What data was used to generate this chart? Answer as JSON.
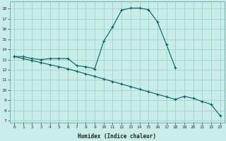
{
  "xlabel": "Humidex (Indice chaleur)",
  "bg_color": "#c8ece8",
  "line_color": "#006060",
  "grid_color": "#99cccc",
  "xlim": [
    -0.5,
    23.5
  ],
  "ylim": [
    6.8,
    18.7
  ],
  "xticks": [
    0,
    1,
    2,
    3,
    4,
    5,
    6,
    7,
    8,
    9,
    10,
    11,
    12,
    13,
    14,
    15,
    16,
    17,
    18,
    19,
    20,
    21,
    22,
    23
  ],
  "yticks": [
    7,
    8,
    9,
    10,
    11,
    12,
    13,
    14,
    15,
    16,
    17,
    18
  ],
  "curve1_x": [
    0,
    1,
    2,
    3,
    4,
    5,
    6,
    7,
    8,
    9,
    10,
    11,
    12,
    13,
    14,
    15,
    16,
    17,
    18
  ],
  "curve1_y": [
    13.3,
    13.3,
    13.1,
    13.0,
    13.1,
    13.1,
    13.1,
    12.4,
    12.3,
    12.1,
    14.8,
    16.2,
    17.85,
    18.05,
    18.05,
    17.9,
    16.7,
    14.5,
    12.2
  ],
  "curve2_x": [
    0,
    1,
    2,
    3,
    4,
    5,
    6,
    7,
    8,
    9,
    10,
    11,
    12,
    13,
    14,
    15,
    16,
    17,
    18,
    19,
    20,
    21,
    22,
    23
  ],
  "curve2_y": [
    13.3,
    13.1,
    12.9,
    12.7,
    12.5,
    12.3,
    12.1,
    11.85,
    11.6,
    11.35,
    11.1,
    10.85,
    10.6,
    10.35,
    10.1,
    9.85,
    9.6,
    9.35,
    9.1,
    9.4,
    9.2,
    8.9,
    8.6,
    7.5
  ]
}
